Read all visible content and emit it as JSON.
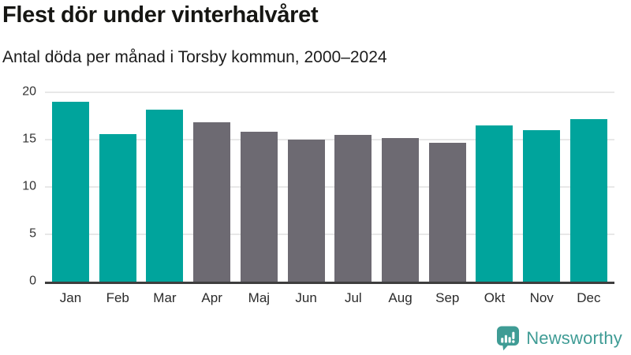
{
  "chart_data": {
    "type": "bar",
    "title": "Flest dör under vinterhalvåret",
    "subtitle": "Antal döda per månad i Torsby kommun, 2000–2024",
    "categories": [
      "Jan",
      "Feb",
      "Mar",
      "Apr",
      "Maj",
      "Jun",
      "Jul",
      "Aug",
      "Sep",
      "Okt",
      "Nov",
      "Dec"
    ],
    "values": [
      19.0,
      15.6,
      18.2,
      16.8,
      15.8,
      15.0,
      15.5,
      15.2,
      14.7,
      16.5,
      16.0,
      17.2
    ],
    "bar_seasons": [
      "winter",
      "winter",
      "winter",
      "summer",
      "summer",
      "summer",
      "summer",
      "summer",
      "summer",
      "winter",
      "winter",
      "winter"
    ],
    "colors": {
      "winter": "#00a49c",
      "summer": "#6d6a72",
      "grid": "#e8e8e8",
      "axis_line": "#3e3e3e"
    },
    "xlabel": "",
    "ylabel": "",
    "ylim": [
      0,
      20
    ],
    "yticks": [
      0,
      5,
      10,
      15,
      20
    ],
    "grid": true,
    "legend": false
  },
  "footer": {
    "brand": "Newsworthy",
    "logo_color": "#3f9c95"
  }
}
